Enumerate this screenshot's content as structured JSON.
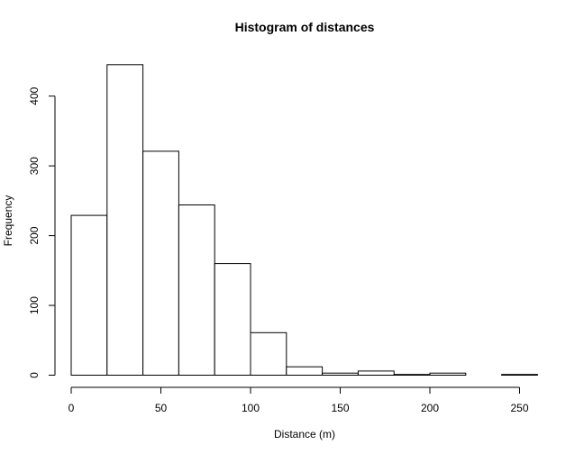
{
  "chart_data": {
    "type": "bar",
    "title": "Histogram of distances",
    "xlabel": "Distance (m)",
    "ylabel": "Frequency",
    "xlim": [
      0,
      260
    ],
    "ylim": [
      0,
      445
    ],
    "xticks": [
      0,
      50,
      100,
      150,
      200,
      250
    ],
    "yticks": [
      0,
      100,
      200,
      300,
      400
    ],
    "bins": [
      {
        "start": 0,
        "end": 20,
        "count": 229
      },
      {
        "start": 20,
        "end": 40,
        "count": 445
      },
      {
        "start": 40,
        "end": 60,
        "count": 321
      },
      {
        "start": 60,
        "end": 80,
        "count": 244
      },
      {
        "start": 80,
        "end": 100,
        "count": 160
      },
      {
        "start": 100,
        "end": 120,
        "count": 61
      },
      {
        "start": 120,
        "end": 140,
        "count": 12
      },
      {
        "start": 140,
        "end": 160,
        "count": 3
      },
      {
        "start": 160,
        "end": 180,
        "count": 6
      },
      {
        "start": 180,
        "end": 200,
        "count": 1
      },
      {
        "start": 200,
        "end": 220,
        "count": 3
      },
      {
        "start": 220,
        "end": 240,
        "count": 0
      },
      {
        "start": 240,
        "end": 260,
        "count": 1
      }
    ],
    "grid": false,
    "colors": {
      "bar_fill": "#ffffff",
      "bar_stroke": "#000000",
      "background": "#ffffff"
    }
  }
}
